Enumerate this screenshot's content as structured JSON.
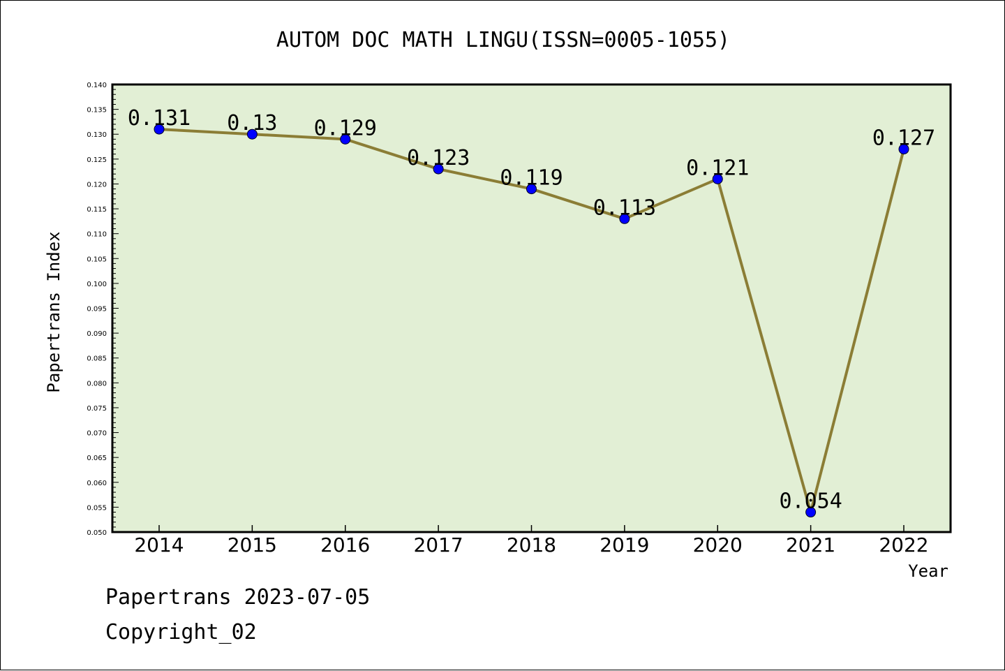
{
  "chart_data": {
    "type": "line",
    "title": "AUTOM DOC MATH LINGU(ISSN=0005-1055)",
    "xlabel": "Year",
    "ylabel": "Papertrans Index",
    "categories": [
      "2014",
      "2015",
      "2016",
      "2017",
      "2018",
      "2019",
      "2020",
      "2021",
      "2022"
    ],
    "series": [
      {
        "values": [
          0.131,
          0.13,
          0.129,
          0.123,
          0.119,
          0.113,
          0.121,
          0.054,
          0.127
        ],
        "value_labels": [
          "0.131",
          "0.13",
          "0.129",
          "0.123",
          "0.119",
          "0.113",
          "0.121",
          "0.054",
          "0.127"
        ]
      }
    ],
    "ylim": [
      0.05,
      0.14
    ],
    "yticks": [
      "0.050",
      "0.055",
      "0.060",
      "0.065",
      "0.070",
      "0.075",
      "0.080",
      "0.085",
      "0.090",
      "0.095",
      "0.100",
      "0.105",
      "0.110",
      "0.115",
      "0.120",
      "0.125",
      "0.130",
      "0.135",
      "0.140"
    ],
    "grid": false,
    "legend": "none",
    "colors": {
      "plot_background": "#e2efd5",
      "line": "#8b7d35",
      "marker": "#0000ff"
    }
  },
  "footer": {
    "line1": "Papertrans 2023-07-05",
    "line2": "Copyright_02"
  }
}
